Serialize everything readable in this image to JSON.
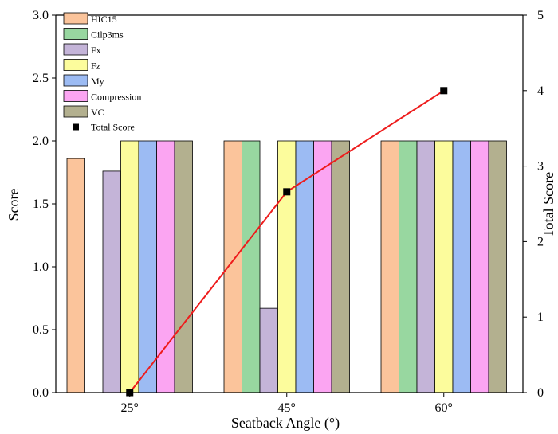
{
  "chart_data": {
    "type": "bar",
    "categories": [
      "25°",
      "45°",
      "60°"
    ],
    "xlabel": "Seatback Angle (°)",
    "ylabel": "Score",
    "y2label": "Total Score",
    "ylim": [
      0,
      3.0
    ],
    "y2lim": [
      0,
      5
    ],
    "yticks": [
      "0.0",
      "0.5",
      "1.0",
      "1.5",
      "2.0",
      "2.5",
      "3.0"
    ],
    "y2ticks": [
      "0",
      "1",
      "2",
      "3",
      "4",
      "5"
    ],
    "legend_position": "top-left",
    "grid": false,
    "series": [
      {
        "name": "HIC15",
        "color": "#FBC49B",
        "values": [
          1.86,
          2.0,
          2.0
        ]
      },
      {
        "name": "Cilp3ms",
        "color": "#98D7A0",
        "values": [
          0,
          2.0,
          2.0
        ]
      },
      {
        "name": "Fx",
        "color": "#C4B4D8",
        "values": [
          1.76,
          0.67,
          2.0
        ]
      },
      {
        "name": "Fz",
        "color": "#FCFC9C",
        "values": [
          2.0,
          2.0,
          2.0
        ]
      },
      {
        "name": "My",
        "color": "#9CBBF3",
        "values": [
          2.0,
          2.0,
          2.0
        ]
      },
      {
        "name": "Compression",
        "color": "#FBA5F2",
        "values": [
          2.0,
          2.0,
          2.0
        ]
      },
      {
        "name": "VC",
        "color": "#B3B08F",
        "values": [
          2.0,
          2.0,
          2.0
        ]
      }
    ],
    "line_series": {
      "name": "Total Score",
      "axis": "right",
      "line_color": "#EE1C1C",
      "marker_color": "#000000",
      "values": [
        0,
        2.66,
        4.0
      ]
    }
  }
}
